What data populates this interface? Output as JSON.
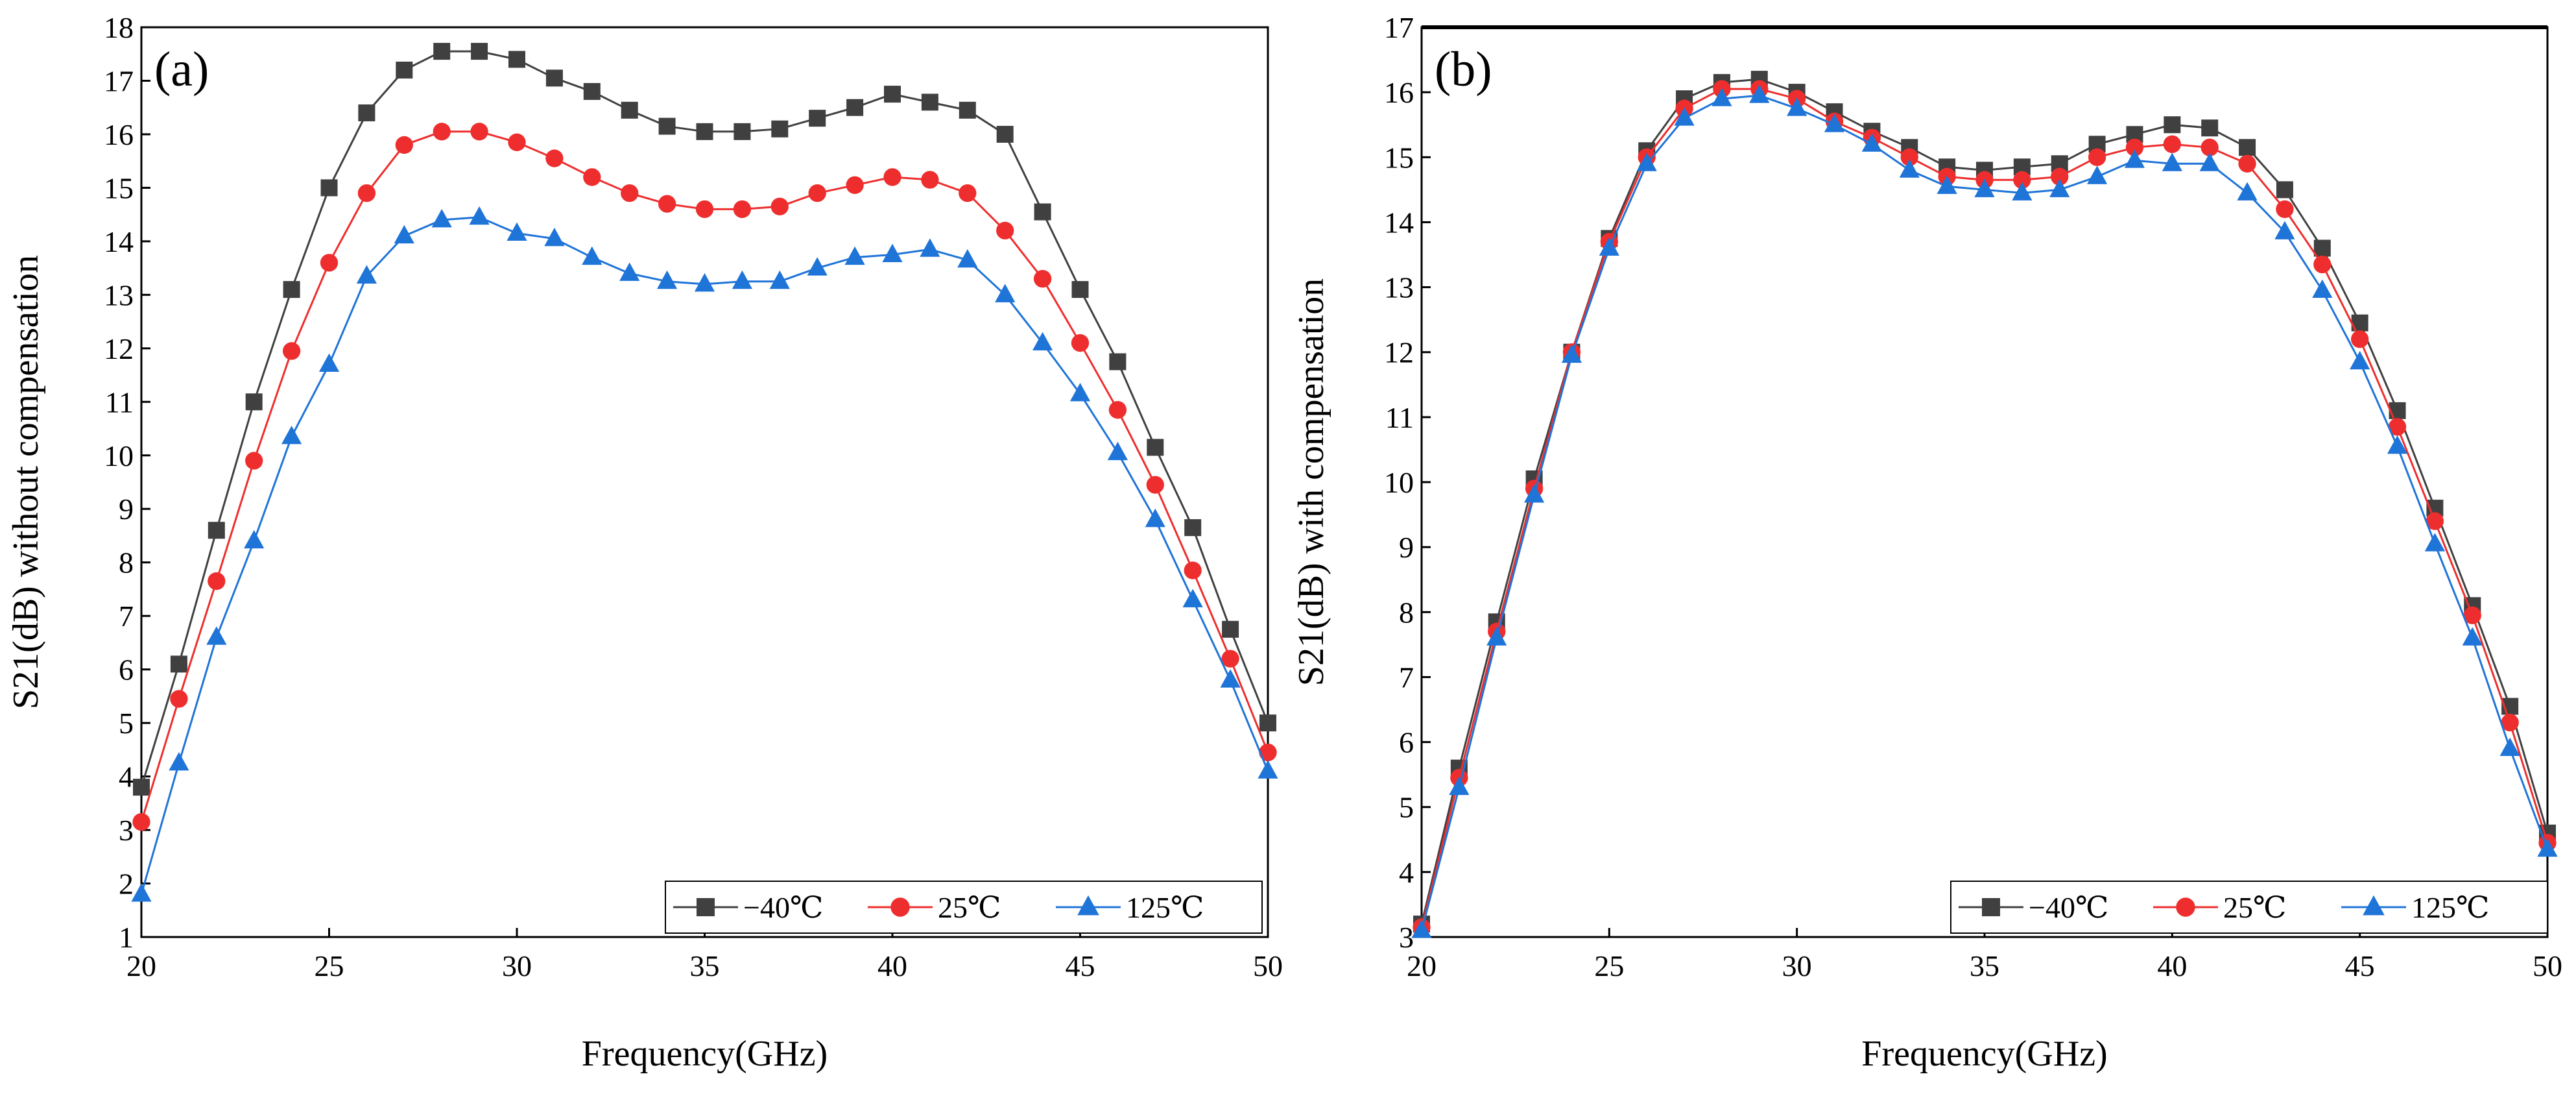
{
  "colors": {
    "neg40": "#404040",
    "p25": "#ee2e2e",
    "p125": "#1f74d8"
  },
  "chart_data": [
    {
      "type": "line",
      "panel_label": "(a)",
      "xlabel": "Frequency(GHz)",
      "ylabel": "S21(dB) without compensation",
      "xlim": [
        20,
        50
      ],
      "ylim": [
        1,
        18
      ],
      "xticks": [
        20,
        25,
        30,
        35,
        40,
        45,
        50
      ],
      "yticks": [
        1,
        2,
        3,
        4,
        5,
        6,
        7,
        8,
        9,
        10,
        11,
        12,
        13,
        14,
        15,
        16,
        17,
        18
      ],
      "legend_position": "bottom-right",
      "x": [
        20,
        21,
        22,
        23,
        24,
        25,
        26,
        27,
        28,
        29,
        30,
        31,
        32,
        33,
        34,
        35,
        36,
        37,
        38,
        39,
        40,
        41,
        42,
        43,
        44,
        45,
        46,
        47,
        48,
        49,
        50
      ],
      "series": [
        {
          "name": "−40℃",
          "marker": "square",
          "color_key": "neg40",
          "values": [
            3.8,
            6.1,
            8.6,
            11.0,
            13.1,
            15.0,
            16.4,
            17.2,
            17.55,
            17.55,
            17.4,
            17.05,
            16.8,
            16.45,
            16.15,
            16.05,
            16.05,
            16.1,
            16.3,
            16.5,
            16.75,
            16.6,
            16.45,
            16.0,
            14.55,
            13.1,
            11.75,
            10.15,
            8.65,
            6.75,
            5.0
          ]
        },
        {
          "name": "25℃",
          "marker": "circle",
          "color_key": "p25",
          "values": [
            3.15,
            5.45,
            7.65,
            9.9,
            11.95,
            13.6,
            14.9,
            15.8,
            16.05,
            16.05,
            15.85,
            15.55,
            15.2,
            14.9,
            14.7,
            14.6,
            14.6,
            14.65,
            14.9,
            15.05,
            15.2,
            15.15,
            14.9,
            14.2,
            13.3,
            12.1,
            10.85,
            9.45,
            7.85,
            6.2,
            4.45
          ]
        },
        {
          "name": "125℃",
          "marker": "triangle",
          "color_key": "p125",
          "values": [
            1.8,
            4.25,
            6.6,
            8.4,
            10.35,
            11.7,
            13.35,
            14.1,
            14.4,
            14.45,
            14.15,
            14.05,
            13.7,
            13.4,
            13.25,
            13.2,
            13.25,
            13.25,
            13.5,
            13.7,
            13.75,
            13.85,
            13.65,
            13.0,
            12.1,
            11.15,
            10.05,
            8.8,
            7.3,
            5.8,
            4.1
          ]
        }
      ]
    },
    {
      "type": "line",
      "panel_label": "(b)",
      "xlabel": "Frequency(GHz)",
      "ylabel": "S21(dB) with compensation",
      "xlim": [
        20,
        50
      ],
      "ylim": [
        3,
        17
      ],
      "xticks": [
        20,
        25,
        30,
        35,
        40,
        45,
        50
      ],
      "yticks": [
        3,
        4,
        5,
        6,
        7,
        8,
        9,
        10,
        11,
        12,
        13,
        14,
        15,
        16,
        17
      ],
      "legend_position": "bottom-right",
      "x": [
        20,
        21,
        22,
        23,
        24,
        25,
        26,
        27,
        28,
        29,
        30,
        31,
        32,
        33,
        34,
        35,
        36,
        37,
        38,
        39,
        40,
        41,
        42,
        43,
        44,
        45,
        46,
        47,
        48,
        49,
        50
      ],
      "series": [
        {
          "name": "−40℃",
          "marker": "square",
          "color_key": "neg40",
          "values": [
            3.2,
            5.6,
            7.85,
            10.05,
            12.0,
            13.75,
            15.1,
            15.9,
            16.15,
            16.2,
            16.0,
            15.7,
            15.4,
            15.15,
            14.85,
            14.8,
            14.85,
            14.9,
            15.2,
            15.35,
            15.5,
            15.45,
            15.15,
            14.5,
            13.6,
            12.45,
            11.1,
            9.6,
            8.1,
            6.55,
            4.6
          ]
        },
        {
          "name": "25℃",
          "marker": "circle",
          "color_key": "p25",
          "values": [
            3.15,
            5.45,
            7.7,
            9.9,
            12.0,
            13.7,
            15.0,
            15.75,
            16.05,
            16.05,
            15.9,
            15.55,
            15.3,
            15.0,
            14.7,
            14.65,
            14.65,
            14.7,
            15.0,
            15.15,
            15.2,
            15.15,
            14.9,
            14.2,
            13.35,
            12.2,
            10.85,
            9.4,
            7.95,
            6.3,
            4.45
          ]
        },
        {
          "name": "125℃",
          "marker": "triangle",
          "color_key": "p125",
          "values": [
            3.1,
            5.3,
            7.6,
            9.8,
            11.95,
            13.6,
            14.9,
            15.6,
            15.9,
            15.95,
            15.75,
            15.5,
            15.2,
            14.8,
            14.55,
            14.5,
            14.45,
            14.5,
            14.7,
            14.95,
            14.9,
            14.9,
            14.45,
            13.85,
            12.95,
            11.85,
            10.55,
            9.05,
            7.6,
            5.9,
            4.35
          ]
        }
      ]
    }
  ]
}
